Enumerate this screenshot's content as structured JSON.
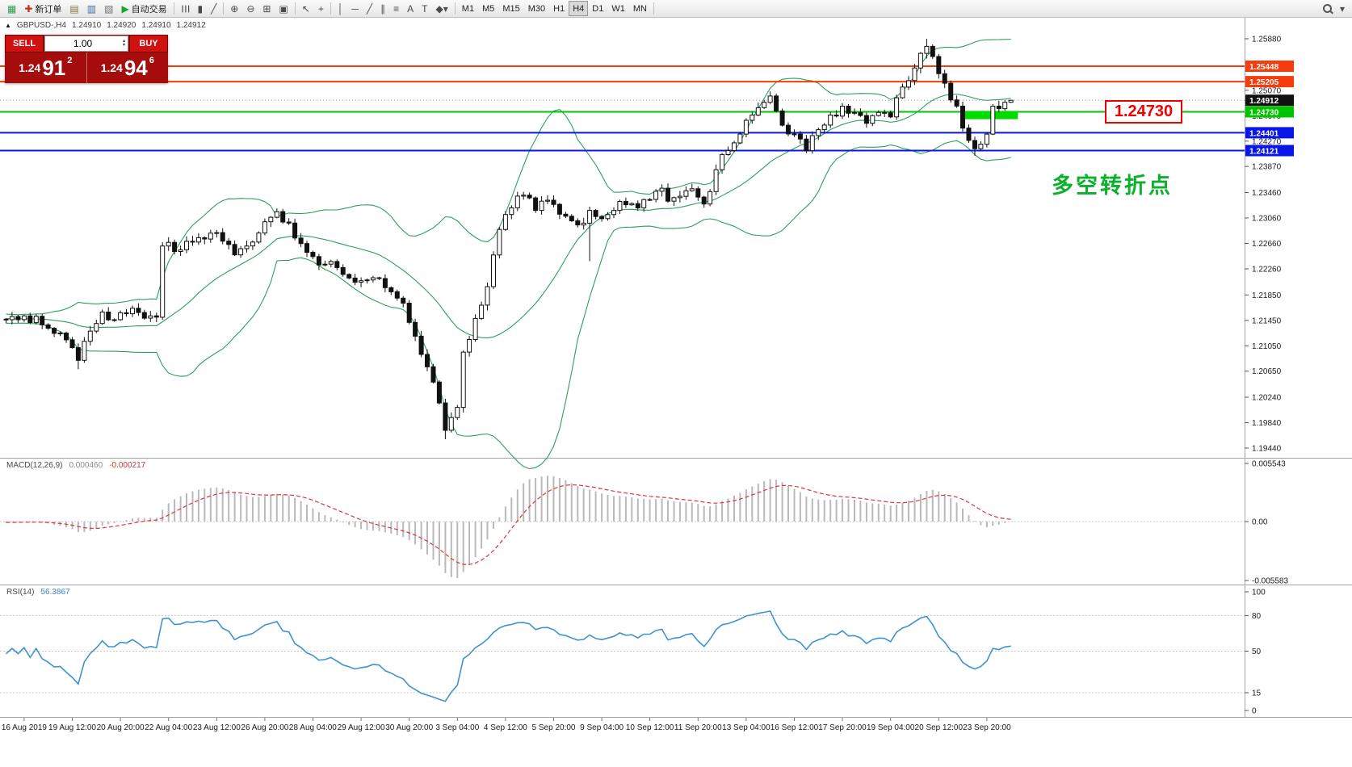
{
  "toolbar": {
    "groups": [
      {
        "items": [
          {
            "name": "app-logo-icon",
            "glyph": "▦",
            "color": "#2f9e4e"
          },
          {
            "name": "new-order-button",
            "glyph": "✚",
            "color": "#c63418",
            "label": "新订单"
          },
          {
            "name": "chart-profiles-icon",
            "glyph": "▤",
            "color": "#8a7340"
          },
          {
            "name": "market-watch-icon",
            "glyph": "▥",
            "color": "#3b6ea5"
          },
          {
            "name": "navigator-icon",
            "glyph": "▧",
            "color": "#6f6f6f"
          },
          {
            "name": "autotrading-button",
            "glyph": "▶",
            "color": "#17a62c",
            "label": "自动交易"
          }
        ]
      },
      {
        "items": [
          {
            "name": "bar-chart-type-icon",
            "glyph": "☰",
            "rot": true
          },
          {
            "name": "candlestick-type-icon",
            "glyph": "▮"
          },
          {
            "name": "line-chart-type-icon",
            "glyph": "╱"
          }
        ]
      },
      {
        "items": [
          {
            "name": "zoom-in-icon",
            "glyph": "⊕"
          },
          {
            "name": "zoom-out-icon",
            "glyph": "⊖"
          },
          {
            "name": "tile-windows-icon",
            "glyph": "⊞"
          },
          {
            "name": "cascade-windows-icon",
            "glyph": "▣"
          }
        ]
      },
      {
        "items": [
          {
            "name": "cursor-icon",
            "glyph": "↖"
          },
          {
            "name": "crosshair-icon",
            "glyph": "+"
          }
        ]
      },
      {
        "items": [
          {
            "name": "vertical-line-icon",
            "glyph": "│"
          },
          {
            "name": "horizontal-line-icon",
            "glyph": "─"
          },
          {
            "name": "trendline-icon",
            "glyph": "╱"
          },
          {
            "name": "channel-icon",
            "glyph": "∥"
          },
          {
            "name": "fibonacci-icon",
            "glyph": "≡"
          },
          {
            "name": "text-icon",
            "glyph": "A"
          },
          {
            "name": "label-icon",
            "glyph": "T"
          },
          {
            "name": "shapes-dropdown-icon",
            "glyph": "◆▾"
          }
        ]
      },
      {
        "items": [
          {
            "name": "timeframe-m1-button",
            "text": "M1"
          },
          {
            "name": "timeframe-m5-button",
            "text": "M5"
          },
          {
            "name": "timeframe-m15-button",
            "text": "M15"
          },
          {
            "name": "timeframe-m30-button",
            "text": "M30"
          },
          {
            "name": "timeframe-h1-button",
            "text": "H1"
          },
          {
            "name": "timeframe-h4-button",
            "text": "H4",
            "active": true
          },
          {
            "name": "timeframe-d1-button",
            "text": "D1"
          },
          {
            "name": "timeframe-w1-button",
            "text": "W1"
          },
          {
            "name": "timeframe-mn-button",
            "text": "MN"
          }
        ]
      },
      {
        "items": [
          {
            "name": "search-icon",
            "lens": true,
            "right": true
          },
          {
            "name": "toolbar-more-icon",
            "glyph": "▾"
          }
        ]
      }
    ]
  },
  "chart_header": {
    "collapse_glyph": "▲",
    "symbol": "GBPUSD-,H4",
    "open": "1.24910",
    "high": "1.24920",
    "low": "1.24910",
    "close": "1.24912"
  },
  "one_click": {
    "sell_label": "SELL",
    "buy_label": "BUY",
    "volume": "1.00",
    "spin_up": "▴",
    "spin_down": "▾",
    "sell_price": {
      "big": "1.24",
      "mid": "91",
      "sup": "2"
    },
    "buy_price": {
      "big": "1.24",
      "mid": "94",
      "sup": "6"
    }
  },
  "chart_data": {
    "type": "candlestick",
    "symbol": "GBPUSD-",
    "timeframe": "H4",
    "bars_total": 168,
    "current_price": 1.24912,
    "current_price_label": "1.24912",
    "price_axis": {
      "max": 1.2588,
      "min": 1.1944,
      "ticks": [
        "1.25880",
        "1.25070",
        "1.24670",
        "1.24270",
        "1.23870",
        "1.23460",
        "1.23060",
        "1.22660",
        "1.22260",
        "1.21850",
        "1.21450",
        "1.21050",
        "1.20650",
        "1.20240",
        "1.19840",
        "1.19440"
      ]
    },
    "hlines": [
      {
        "price": 1.25448,
        "label": "1.25448",
        "color": "#f63c0c"
      },
      {
        "price": 1.25205,
        "label": "1.25205",
        "color": "#f63c0c"
      },
      {
        "price": 1.2473,
        "label": "1.24730",
        "color": "#00c400"
      },
      {
        "price": 1.24401,
        "label": "1.24401",
        "color": "#0a16e8"
      },
      {
        "price": 1.24121,
        "label": "1.24121",
        "color": "#0a16e8"
      }
    ],
    "overlays": {
      "bollinger": {
        "period": 20,
        "deviation": 2,
        "color": "#2ca05a"
      }
    },
    "close_anchors": [
      [
        0,
        1.2146
      ],
      [
        3,
        1.2152
      ],
      [
        6,
        1.2138
      ],
      [
        9,
        1.2125
      ],
      [
        11,
        1.2102
      ],
      [
        12,
        1.2082
      ],
      [
        13,
        1.2112
      ],
      [
        14,
        1.2128
      ],
      [
        16,
        1.2158
      ],
      [
        18,
        1.2146
      ],
      [
        21,
        1.2164
      ],
      [
        24,
        1.2152
      ],
      [
        25,
        1.215
      ],
      [
        26,
        1.2262
      ],
      [
        29,
        1.2256
      ],
      [
        32,
        1.2275
      ],
      [
        35,
        1.2283
      ],
      [
        38,
        1.2248
      ],
      [
        40,
        1.2262
      ],
      [
        43,
        1.23
      ],
      [
        45,
        1.2316
      ],
      [
        47,
        1.2298
      ],
      [
        50,
        1.2252
      ],
      [
        52,
        1.2232
      ],
      [
        55,
        1.2228
      ],
      [
        58,
        1.2205
      ],
      [
        61,
        1.2212
      ],
      [
        64,
        1.219
      ],
      [
        66,
        1.2172
      ],
      [
        68,
        1.212
      ],
      [
        70,
        1.2072
      ],
      [
        72,
        1.2015
      ],
      [
        73,
        1.1972
      ],
      [
        74,
        1.1992
      ],
      [
        75,
        1.2008
      ],
      [
        76,
        1.2095
      ],
      [
        78,
        1.2148
      ],
      [
        80,
        1.2198
      ],
      [
        82,
        1.2288
      ],
      [
        84,
        1.2322
      ],
      [
        86,
        1.2342
      ],
      [
        88,
        1.2318
      ],
      [
        90,
        1.2334
      ],
      [
        92,
        1.2312
      ],
      [
        95,
        1.2295
      ],
      [
        97,
        1.2318
      ],
      [
        99,
        1.2305
      ],
      [
        102,
        1.2332
      ],
      [
        105,
        1.2322
      ],
      [
        108,
        1.2348
      ],
      [
        111,
        1.2338
      ],
      [
        114,
        1.2352
      ],
      [
        116,
        1.2328
      ],
      [
        118,
        1.2382
      ],
      [
        120,
        1.2412
      ],
      [
        122,
        1.2438
      ],
      [
        124,
        1.2468
      ],
      [
        126,
        1.2488
      ],
      [
        127,
        1.2498
      ],
      [
        129,
        1.2452
      ],
      [
        131,
        1.2438
      ],
      [
        133,
        1.2412
      ],
      [
        135,
        1.2445
      ],
      [
        137,
        1.2468
      ],
      [
        139,
        1.2482
      ],
      [
        141,
        1.2472
      ],
      [
        143,
        1.2455
      ],
      [
        145,
        1.2472
      ],
      [
        147,
        1.2465
      ],
      [
        149,
        1.2512
      ],
      [
        151,
        1.2542
      ],
      [
        153,
        1.2576
      ],
      [
        154,
        1.256
      ],
      [
        156,
        1.2518
      ],
      [
        158,
        1.2482
      ],
      [
        160,
        1.2428
      ],
      [
        161,
        1.2415
      ],
      [
        162,
        1.2422
      ],
      [
        163,
        1.2438
      ],
      [
        164,
        1.2482
      ],
      [
        165,
        1.2478
      ],
      [
        166,
        1.2488
      ],
      [
        167,
        1.24912
      ]
    ],
    "bar_overrides": {
      "12": {
        "l": 1.2068
      },
      "26": {
        "o": 1.215,
        "c": 1.2262,
        "h": 1.2268,
        "l": 1.2146
      },
      "73": {
        "l": 1.1958
      },
      "76": {
        "o": 1.2008,
        "c": 1.2095
      },
      "97": {
        "l": 1.2238
      },
      "127": {
        "h": 1.2505
      },
      "153": {
        "h": 1.2588
      },
      "161": {
        "l": 1.2404
      },
      "164": {
        "o": 1.2438,
        "c": 1.2482
      },
      "167": {
        "o": 1.2488,
        "h": 1.2492,
        "l": 1.2487,
        "c": 1.24912
      }
    },
    "x_label_first_bar": 3,
    "x_label_step": 8,
    "x_labels": [
      "16 Aug 2019",
      "19 Aug 12:00",
      "20 Aug 20:00",
      "22 Aug 04:00",
      "23 Aug 12:00",
      "26 Aug 20:00",
      "28 Aug 04:00",
      "29 Aug 12:00",
      "30 Aug 20:00",
      "3 Sep 04:00",
      "4 Sep 12:00",
      "5 Sep 20:00",
      "9 Sep 04:00",
      "10 Sep 12:00",
      "11 Sep 20:00",
      "13 Sep 04:00",
      "16 Sep 12:00",
      "17 Sep 20:00",
      "19 Sep 04:00",
      "20 Sep 12:00",
      "23 Sep 20:00"
    ],
    "subcharts": [
      {
        "type": "macd",
        "label": "MACD(12,26,9)",
        "value_main": "0.000460",
        "value_signal": "-0.000217",
        "axis_labels": [
          "0.005543",
          "0.00",
          "-0.005583"
        ],
        "histogram_color": "#b9b9b9",
        "signal_color": "#e03535"
      },
      {
        "type": "rsi",
        "label": "RSI(14)",
        "value": "56.3867",
        "axis_labels": [
          "100",
          "80",
          "50",
          "15",
          "0"
        ],
        "levels": [
          80,
          50,
          15
        ],
        "line_color": "#3f92d2"
      }
    ],
    "annotations": {
      "rect": {
        "bar_from": 159,
        "bar_to": 168.5,
        "price_from": 1.24615,
        "price_to": 1.24745,
        "color": "#00dc00"
      },
      "price_callout": {
        "text": "1.24730",
        "color": "#f10000"
      },
      "note": {
        "text": "多空转折点",
        "color": "#0bb12b"
      }
    }
  }
}
